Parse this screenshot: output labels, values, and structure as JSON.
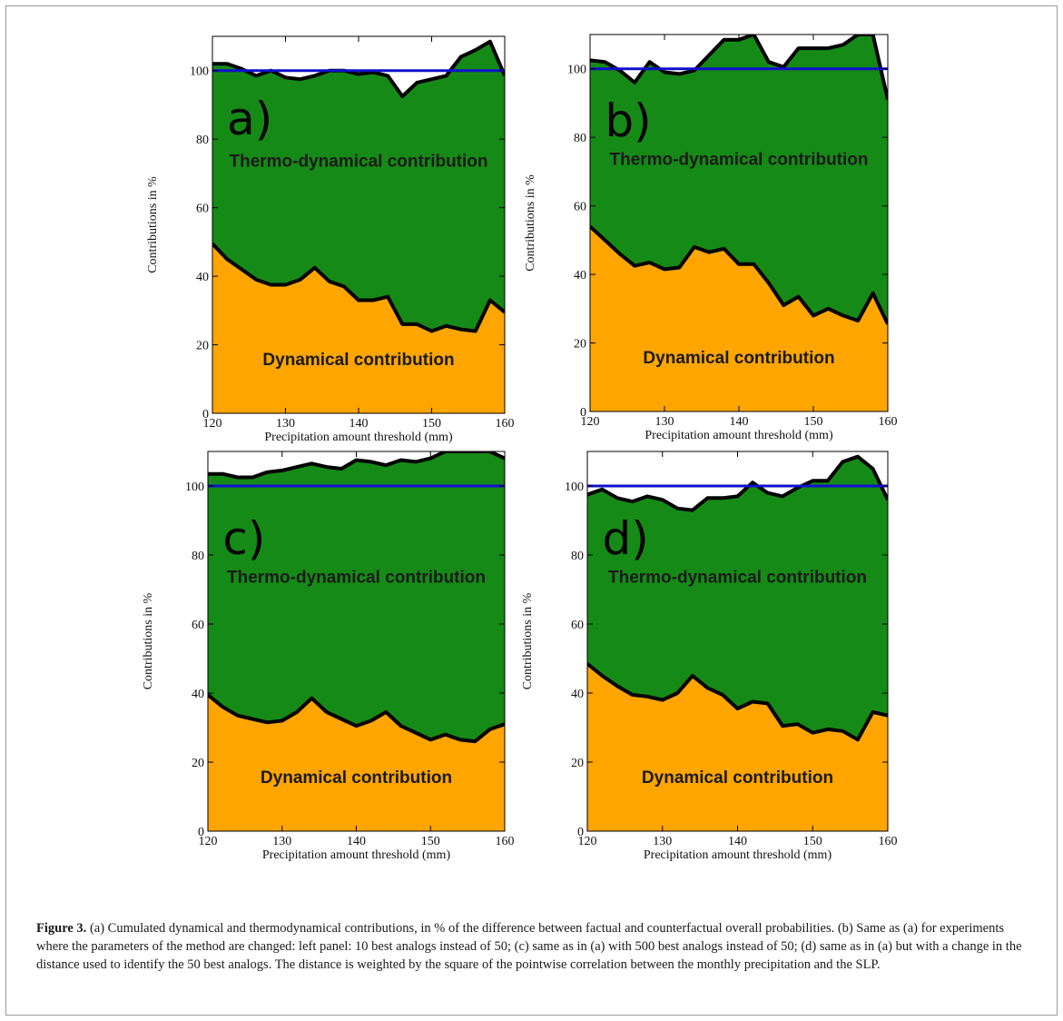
{
  "caption": {
    "label": "Figure 3.",
    "text": "(a) Cumulated dynamical and thermodynamical contributions, in % of the difference between factual and counterfactual overall probabilities. (b) Same as (a) for experiments where the parameters of the method are changed: left panel: 10 best analogs instead of 50; (c) same as in (a) with 500 best analogs instead of 50; (d) same as in (a) but with a change in the distance used to identify the 50 best analogs. The distance is weighted by the square of the pointwise correlation between the monthly precipitation and the SLP."
  },
  "colors": {
    "thermo_fill": "#168a16",
    "dynamical_fill": "#ffa500",
    "reference_line": "#1010cc",
    "boundary_line": "#000000",
    "region_text": "#1a1a1a"
  },
  "chart_data": [
    {
      "type": "area",
      "panel_label": "a)",
      "xlabel": "Precipitation amount threshold (mm)",
      "ylabel": "Contributions in %",
      "xlim": [
        120,
        160
      ],
      "ylim": [
        0,
        110
      ],
      "xticks": [
        120,
        130,
        140,
        150,
        160
      ],
      "yticks": [
        0,
        20,
        40,
        60,
        80,
        100
      ],
      "reference_line_y": 100,
      "series": [
        {
          "name": "Dynamical contribution",
          "x": [
            120,
            122,
            124,
            126,
            128,
            130,
            132,
            134,
            136,
            138,
            140,
            142,
            144,
            146,
            148,
            150,
            152,
            154,
            156,
            158,
            160
          ],
          "values": [
            49.5,
            45,
            42,
            39,
            37.5,
            37.5,
            39,
            42.5,
            38.5,
            37,
            33,
            33,
            34,
            26,
            26,
            24,
            25.5,
            24.5,
            24,
            33,
            29.5
          ]
        },
        {
          "name": "Thermo-dynamical contribution",
          "x": [
            120,
            122,
            124,
            126,
            128,
            130,
            132,
            134,
            136,
            138,
            140,
            142,
            144,
            146,
            148,
            150,
            152,
            154,
            156,
            158,
            160
          ],
          "values": [
            102,
            102,
            100.5,
            98.5,
            100,
            98,
            97.5,
            98.5,
            100,
            100,
            99,
            99.5,
            98.5,
            92.5,
            96.5,
            97.5,
            98.5,
            104,
            106,
            108.5,
            98.5
          ]
        }
      ]
    },
    {
      "type": "area",
      "panel_label": "b)",
      "xlabel": "Precipitation amount threshold (mm)",
      "ylabel": "Contributions in %",
      "xlim": [
        120,
        160
      ],
      "ylim": [
        0,
        110
      ],
      "xticks": [
        120,
        130,
        140,
        150,
        160
      ],
      "yticks": [
        0,
        20,
        40,
        60,
        80,
        100
      ],
      "reference_line_y": 100,
      "series": [
        {
          "name": "Dynamical contribution",
          "x": [
            120,
            122,
            124,
            126,
            128,
            130,
            132,
            134,
            136,
            138,
            140,
            142,
            144,
            146,
            148,
            150,
            152,
            154,
            156,
            158,
            160
          ],
          "values": [
            54,
            50,
            46,
            42.5,
            43.5,
            41.5,
            42,
            48,
            46.5,
            47.5,
            43,
            43,
            37.5,
            31,
            33.5,
            28,
            30,
            28,
            26.5,
            34.5,
            25.5
          ]
        },
        {
          "name": "Thermo-dynamical contribution",
          "x": [
            120,
            122,
            124,
            126,
            128,
            130,
            132,
            134,
            136,
            138,
            140,
            142,
            144,
            146,
            148,
            150,
            152,
            154,
            156,
            158,
            160
          ],
          "values": [
            102.5,
            102,
            99.5,
            96,
            102,
            99,
            98.5,
            99.5,
            104,
            108.5,
            108.5,
            110,
            102,
            100.5,
            106,
            106,
            106,
            107,
            110,
            110,
            91
          ]
        }
      ]
    },
    {
      "type": "area",
      "panel_label": "c)",
      "xlabel": "Precipitation amount threshold (mm)",
      "ylabel": "Contributions in %",
      "xlim": [
        120,
        160
      ],
      "ylim": [
        0,
        110
      ],
      "xticks": [
        120,
        130,
        140,
        150,
        160
      ],
      "yticks": [
        0,
        20,
        40,
        60,
        80,
        100
      ],
      "reference_line_y": 100,
      "series": [
        {
          "name": "Dynamical contribution",
          "x": [
            120,
            122,
            124,
            126,
            128,
            130,
            132,
            134,
            136,
            138,
            140,
            142,
            144,
            146,
            148,
            150,
            152,
            154,
            156,
            158,
            160
          ],
          "values": [
            39.5,
            36,
            33.5,
            32.5,
            31.5,
            32,
            34.5,
            38.5,
            34.5,
            32.5,
            30.5,
            32,
            34.5,
            30.5,
            28.5,
            26.5,
            28,
            26.5,
            26,
            29.5,
            31
          ]
        },
        {
          "name": "Thermo-dynamical contribution",
          "x": [
            120,
            122,
            124,
            126,
            128,
            130,
            132,
            134,
            136,
            138,
            140,
            142,
            144,
            146,
            148,
            150,
            152,
            154,
            156,
            158,
            160
          ],
          "values": [
            103.5,
            103.5,
            102.5,
            102.5,
            104,
            104.5,
            105.5,
            106.5,
            105.5,
            105,
            107.5,
            107,
            106,
            107.5,
            107,
            108,
            110,
            110,
            110,
            110,
            108
          ]
        }
      ]
    },
    {
      "type": "area",
      "panel_label": "d)",
      "xlabel": "Precipitation amount threshold (mm)",
      "ylabel": "Contributions in %",
      "xlim": [
        120,
        160
      ],
      "ylim": [
        0,
        110
      ],
      "xticks": [
        120,
        130,
        140,
        150,
        160
      ],
      "yticks": [
        0,
        20,
        40,
        60,
        80,
        100
      ],
      "reference_line_y": 100,
      "series": [
        {
          "name": "Dynamical contribution",
          "x": [
            120,
            122,
            124,
            126,
            128,
            130,
            132,
            134,
            136,
            138,
            140,
            142,
            144,
            146,
            148,
            150,
            152,
            154,
            156,
            158,
            160
          ],
          "values": [
            48.5,
            45,
            42,
            39.5,
            39,
            38,
            40,
            45,
            41.5,
            39.5,
            35.5,
            37.5,
            37,
            30.5,
            31,
            28.5,
            29.5,
            29,
            26.5,
            34.5,
            33.5
          ]
        },
        {
          "name": "Thermo-dynamical contribution",
          "x": [
            120,
            122,
            124,
            126,
            128,
            130,
            132,
            134,
            136,
            138,
            140,
            142,
            144,
            146,
            148,
            150,
            152,
            154,
            156,
            158,
            160
          ],
          "values": [
            97.5,
            99,
            96.5,
            95.5,
            97,
            96,
            93.5,
            93,
            96.5,
            96.5,
            97,
            101,
            98,
            97,
            99.5,
            101.5,
            101.5,
            107,
            108.5,
            105,
            96
          ]
        }
      ]
    }
  ]
}
